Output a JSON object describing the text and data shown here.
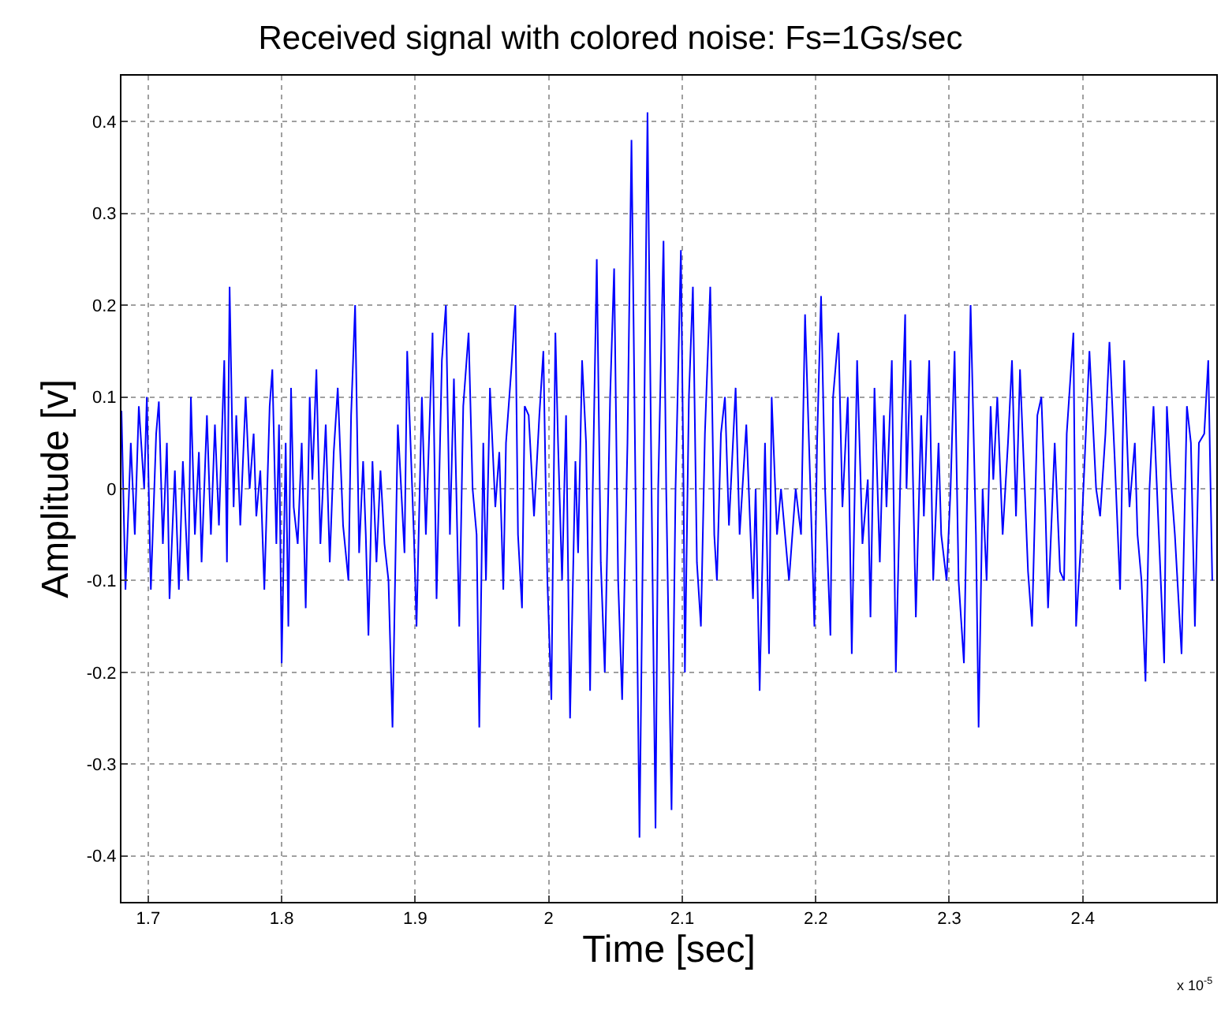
{
  "chart_data": {
    "type": "line",
    "title": "Received signal with colored noise: Fs=1Gs/sec",
    "xlabel": "Time [sec]",
    "ylabel": "Amplitude [v]",
    "annotations": [
      "x 10$^{-5}$"
    ],
    "xlim": [
      1.68,
      2.5
    ],
    "ylim": [
      -0.45,
      0.45
    ],
    "xticks": [
      1.7,
      1.8,
      1.9,
      2,
      2.1,
      2.2,
      2.3,
      2.4
    ],
    "yticks": [
      -0.4,
      -0.3,
      -0.2,
      -0.1,
      0,
      0.1,
      0.2,
      0.3,
      0.4
    ],
    "grid": true,
    "marker": "none",
    "line_style": "solid",
    "series": [
      {
        "color": "#0000ff",
        "x": [
          1.68,
          1.683,
          1.687,
          1.69,
          1.693,
          1.697,
          1.699,
          1.702,
          1.706,
          1.708,
          1.711,
          1.714,
          1.716,
          1.72,
          1.723,
          1.726,
          1.73,
          1.732,
          1.735,
          1.738,
          1.74,
          1.744,
          1.747,
          1.75,
          1.753,
          1.757,
          1.759,
          1.761,
          1.764,
          1.766,
          1.769,
          1.773,
          1.776,
          1.779,
          1.781,
          1.784,
          1.787,
          1.791,
          1.793,
          1.796,
          1.798,
          1.8,
          1.803,
          1.805,
          1.807,
          1.809,
          1.812,
          1.815,
          1.818,
          1.821,
          1.823,
          1.826,
          1.829,
          1.833,
          1.836,
          1.839,
          1.842,
          1.846,
          1.85,
          1.852,
          1.855,
          1.858,
          1.861,
          1.863,
          1.865,
          1.868,
          1.871,
          1.874,
          1.877,
          1.88,
          1.883,
          1.887,
          1.892,
          1.894,
          1.899,
          1.901,
          1.905,
          1.908,
          1.913,
          1.916,
          1.92,
          1.923,
          1.926,
          1.929,
          1.933,
          1.936,
          1.94,
          1.943,
          1.946,
          1.948,
          1.951,
          1.953,
          1.956,
          1.96,
          1.963,
          1.966,
          1.968,
          1.972,
          1.975,
          1.977,
          1.98,
          1.982,
          1.985,
          1.989,
          1.993,
          1.996,
          1.999,
          2.002,
          2.005,
          2.007,
          2.01,
          2.013,
          2.016,
          2.02,
          2.022,
          2.025,
          2.028,
          2.031,
          2.033,
          2.036,
          2.039,
          2.042,
          2.046,
          2.049,
          2.052,
          2.055,
          2.059,
          2.062,
          2.065,
          2.068,
          2.071,
          2.074,
          2.077,
          2.08,
          2.082,
          2.086,
          2.088,
          2.092,
          2.095,
          2.099,
          2.101,
          2.102,
          2.105,
          2.108,
          2.111,
          2.114,
          2.117,
          2.121,
          2.124,
          2.126,
          2.129,
          2.132,
          2.135,
          2.14,
          2.143,
          2.148,
          2.153,
          2.155,
          2.158,
          2.162,
          2.165,
          2.167,
          2.171,
          2.174,
          2.18,
          2.185,
          2.189,
          2.192,
          2.196,
          2.199,
          2.201,
          2.204,
          2.207,
          2.211,
          2.213,
          2.217,
          2.22,
          2.224,
          2.227,
          2.231,
          2.235,
          2.239,
          2.241,
          2.244,
          2.248,
          2.251,
          2.253,
          2.257,
          2.26,
          2.264,
          2.267,
          2.268,
          2.271,
          2.275,
          2.279,
          2.281,
          2.285,
          2.288,
          2.292,
          2.294,
          2.298,
          2.301,
          2.304,
          2.307,
          2.311,
          2.316,
          2.32,
          2.322,
          2.325,
          2.328,
          2.331,
          2.333,
          2.336,
          2.34,
          2.344,
          2.347,
          2.35,
          2.353,
          2.356,
          2.359,
          2.362,
          2.366,
          2.369,
          2.372,
          2.374,
          2.379,
          2.383,
          2.386,
          2.388,
          2.393,
          2.395,
          2.399,
          2.405,
          2.41,
          2.413,
          2.417,
          2.42,
          2.424,
          2.428,
          2.431,
          2.435,
          2.439,
          2.441,
          2.444,
          2.447,
          2.45,
          2.453,
          2.457,
          2.461,
          2.463,
          2.466,
          2.469,
          2.474,
          2.478,
          2.481,
          2.484,
          2.487,
          2.491,
          2.494,
          2.497
        ],
        "values": [
          0.085,
          -0.11,
          0.05,
          -0.05,
          0.09,
          0.0,
          0.1,
          -0.11,
          0.06,
          0.095,
          -0.06,
          0.05,
          -0.12,
          0.02,
          -0.11,
          0.03,
          -0.1,
          0.1,
          -0.05,
          0.04,
          -0.08,
          0.08,
          -0.05,
          0.07,
          -0.04,
          0.14,
          -0.08,
          0.22,
          -0.02,
          0.08,
          -0.04,
          0.1,
          0.0,
          0.06,
          -0.03,
          0.02,
          -0.11,
          0.09,
          0.13,
          -0.06,
          0.07,
          -0.19,
          0.05,
          -0.15,
          0.11,
          -0.02,
          -0.06,
          0.05,
          -0.13,
          0.1,
          0.01,
          0.13,
          -0.06,
          0.07,
          -0.08,
          0.04,
          0.11,
          -0.04,
          -0.1,
          0.08,
          0.2,
          -0.07,
          0.03,
          -0.05,
          -0.16,
          0.03,
          -0.08,
          0.02,
          -0.06,
          -0.1,
          -0.26,
          0.07,
          -0.07,
          0.15,
          -0.05,
          -0.15,
          0.1,
          -0.05,
          0.17,
          -0.12,
          0.14,
          0.2,
          -0.05,
          0.12,
          -0.15,
          0.09,
          0.17,
          0.0,
          -0.05,
          -0.26,
          0.05,
          -0.1,
          0.11,
          -0.02,
          0.04,
          -0.11,
          0.05,
          0.13,
          0.2,
          -0.05,
          -0.13,
          0.09,
          0.08,
          -0.03,
          0.08,
          0.15,
          -0.1,
          -0.23,
          0.17,
          0.05,
          -0.1,
          0.08,
          -0.25,
          0.03,
          -0.07,
          0.14,
          0.05,
          -0.22,
          0.0,
          0.25,
          -0.08,
          -0.2,
          0.1,
          0.24,
          -0.1,
          -0.23,
          0.05,
          0.38,
          0.0,
          -0.38,
          0.0,
          0.41,
          0.0,
          -0.37,
          0.0,
          0.27,
          0.0,
          -0.35,
          0.0,
          0.26,
          0.0,
          -0.2,
          0.1,
          0.22,
          -0.08,
          -0.15,
          0.06,
          0.22,
          -0.05,
          -0.1,
          0.06,
          0.1,
          -0.04,
          0.11,
          -0.05,
          0.07,
          -0.12,
          0.0,
          -0.22,
          0.05,
          -0.18,
          0.1,
          -0.05,
          0.0,
          -0.1,
          0.0,
          -0.05,
          0.19,
          0.0,
          -0.15,
          0.05,
          0.21,
          0.0,
          -0.16,
          0.1,
          0.17,
          -0.02,
          0.1,
          -0.18,
          0.14,
          -0.06,
          0.01,
          -0.14,
          0.11,
          -0.08,
          0.08,
          -0.02,
          0.14,
          -0.2,
          0.05,
          0.19,
          0.0,
          0.14,
          -0.14,
          0.08,
          -0.03,
          0.14,
          -0.1,
          0.05,
          -0.05,
          -0.1,
          0.0,
          0.15,
          -0.1,
          -0.19,
          0.2,
          -0.05,
          -0.26,
          0.0,
          -0.1,
          0.09,
          0.01,
          0.1,
          -0.05,
          0.05,
          0.14,
          -0.03,
          0.13,
          0.02,
          -0.09,
          -0.15,
          0.08,
          0.1,
          -0.02,
          -0.13,
          0.05,
          -0.09,
          -0.1,
          0.06,
          0.17,
          -0.15,
          -0.05,
          0.15,
          0.0,
          -0.03,
          0.06,
          0.16,
          0.03,
          -0.11,
          0.14,
          -0.02,
          0.05,
          -0.05,
          -0.1,
          -0.21,
          0.0,
          0.09,
          -0.05,
          -0.19,
          0.09,
          0.01,
          -0.05,
          -0.18,
          0.09,
          0.05,
          -0.15,
          0.05,
          0.06,
          0.14,
          -0.1
        ]
      }
    ]
  }
}
